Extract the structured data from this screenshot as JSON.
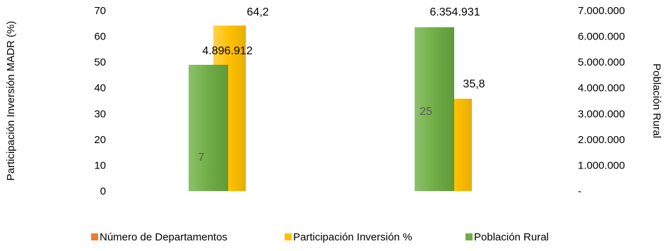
{
  "chart_data": {
    "type": "bar",
    "categories": [
      "",
      ""
    ],
    "y_left": {
      "label": "Participación Inversión MADR (%)",
      "ticks": [
        "0",
        "10",
        "20",
        "30",
        "40",
        "50",
        "60",
        "70"
      ],
      "range": [
        0,
        70
      ]
    },
    "y_right": {
      "label": "Población Rural",
      "ticks": [
        "-",
        "1.000.000",
        "2.000.000",
        "3.000.000",
        "4.000.000",
        "5.000.000",
        "6.000.000",
        "7.000.000"
      ],
      "range": [
        0,
        7000000
      ]
    },
    "series": [
      {
        "name": "Número de Departamentos",
        "axis": "left",
        "color": "#ED7D31",
        "values": [
          7,
          25
        ],
        "labels": [
          "7",
          "25"
        ]
      },
      {
        "name": "Participación Inversión %",
        "axis": "left",
        "color": "#FFC000",
        "values": [
          64.2,
          35.8
        ],
        "labels": [
          "64,2",
          "35,8"
        ]
      },
      {
        "name": "Población Rural",
        "axis": "right",
        "color": "#70AD47",
        "values": [
          4896912,
          6354931
        ],
        "labels": [
          "4.896.912",
          "6.354.931"
        ]
      }
    ],
    "legend_position": "bottom",
    "grid": false
  }
}
